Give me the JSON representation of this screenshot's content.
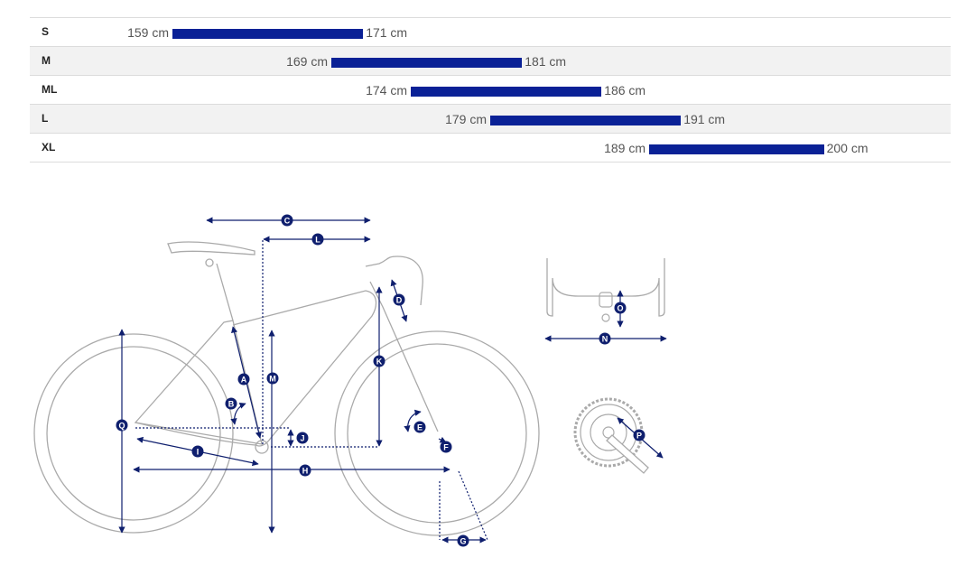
{
  "size_chart": {
    "rows": [
      {
        "size": "S",
        "min": "159 cm",
        "max": "171 cm",
        "min_cm": 159,
        "max_cm": 171
      },
      {
        "size": "M",
        "min": "169 cm",
        "max": "181 cm",
        "min_cm": 169,
        "max_cm": 181
      },
      {
        "size": "ML",
        "min": "174 cm",
        "max": "186 cm",
        "min_cm": 174,
        "max_cm": 186
      },
      {
        "size": "L",
        "min": "179 cm",
        "max": "191 cm",
        "min_cm": 179,
        "max_cm": 191
      },
      {
        "size": "XL",
        "min": "189 cm",
        "max": "200 cm",
        "min_cm": 189,
        "max_cm": 200
      }
    ],
    "bar_color": "#0a2196"
  },
  "geometry": {
    "labels": {
      "A": "A",
      "B": "B",
      "C": "C",
      "D": "D",
      "E": "E",
      "F": "F",
      "G": "G",
      "H": "H",
      "I": "I",
      "J": "J",
      "K": "K",
      "L": "L",
      "M": "M",
      "N": "N",
      "O": "O",
      "P": "P",
      "Q": "Q"
    },
    "marker_color": "#0f1f6e",
    "line_color": "#aaaaaa"
  }
}
